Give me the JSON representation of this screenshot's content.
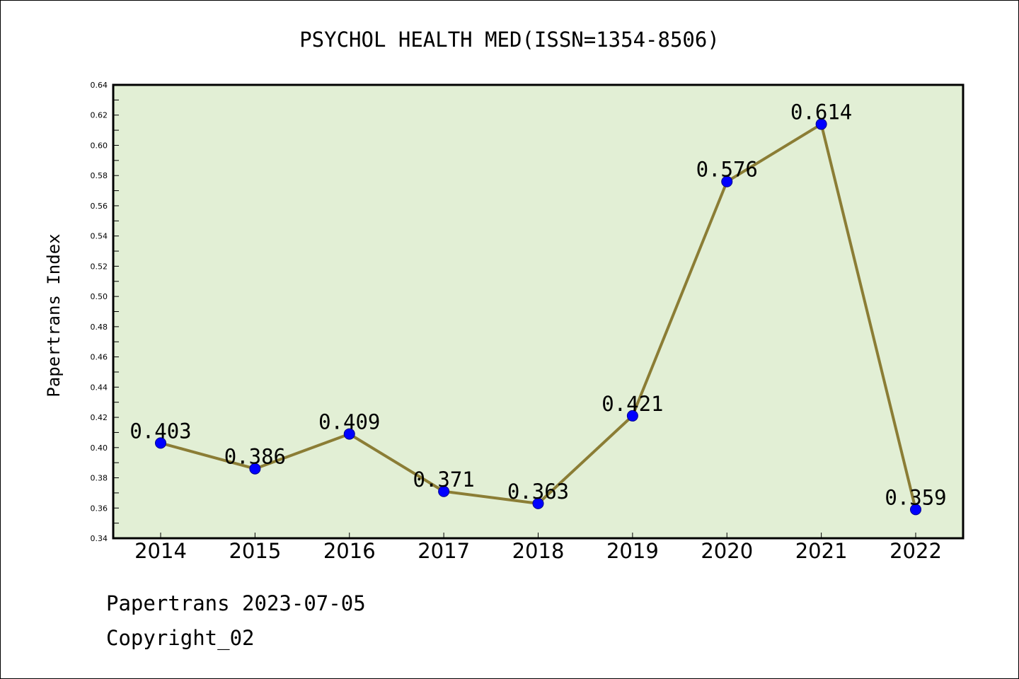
{
  "chart_data": {
    "type": "line",
    "title": "PSYCHOL HEALTH MED(ISSN=1354-8506)",
    "xlabel": "",
    "ylabel": "Papertrans Index",
    "categories": [
      "2014",
      "2015",
      "2016",
      "2017",
      "2018",
      "2019",
      "2020",
      "2021",
      "2022"
    ],
    "series": [
      {
        "values": [
          0.403,
          0.386,
          0.409,
          0.371,
          0.363,
          0.421,
          0.576,
          0.614,
          0.359
        ]
      }
    ],
    "data_labels": [
      "0.403",
      "0.386",
      "0.409",
      "0.371",
      "0.363",
      "0.421",
      "0.576",
      "0.614",
      "0.359"
    ],
    "ylim": [
      0.34,
      0.64
    ],
    "yticks": [
      "0.34",
      "0.36",
      "0.38",
      "0.40",
      "0.42",
      "0.44",
      "0.46",
      "0.48",
      "0.50",
      "0.52",
      "0.54",
      "0.56",
      "0.58",
      "0.60",
      "0.62",
      "0.64"
    ],
    "grid": false,
    "legend": "none",
    "colors": {
      "plot_background": "#e2efd5",
      "line": "#8b7d35",
      "marker": "#0000ff",
      "marker_edge": "#00008b"
    }
  },
  "footer": {
    "date_text": "Papertrans 2023-07-05",
    "copyright_text": "Copyright_02"
  }
}
